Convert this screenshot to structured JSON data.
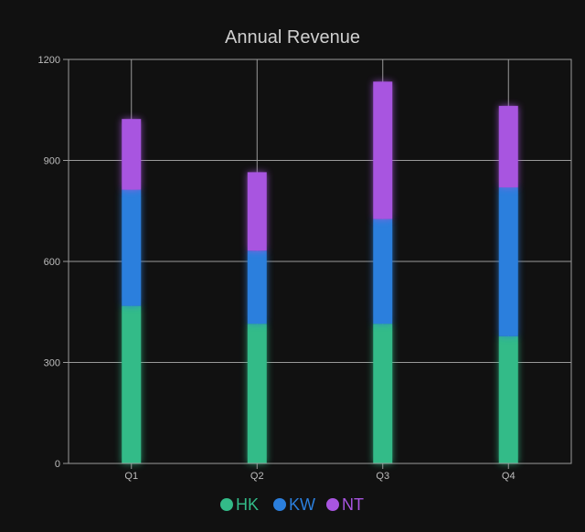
{
  "chart_data": {
    "type": "bar",
    "stacked": true,
    "title": "Annual Revenue",
    "xlabel": "",
    "ylabel": "",
    "categories": [
      "Q1",
      "Q2",
      "Q3",
      "Q4"
    ],
    "ylim": [
      0,
      1200
    ],
    "yticks": [
      0,
      300,
      600,
      900,
      1200
    ],
    "grid": true,
    "legend_position": "bottom",
    "series": [
      {
        "name": "HK",
        "color": "#33bb88",
        "values": [
          468,
          415,
          415,
          378
        ]
      },
      {
        "name": "KW",
        "color": "#2b7fdd",
        "values": [
          345,
          217,
          311,
          442
        ]
      },
      {
        "name": "NT",
        "color": "#a855e0",
        "values": [
          210,
          233,
          408,
          242
        ]
      }
    ]
  }
}
